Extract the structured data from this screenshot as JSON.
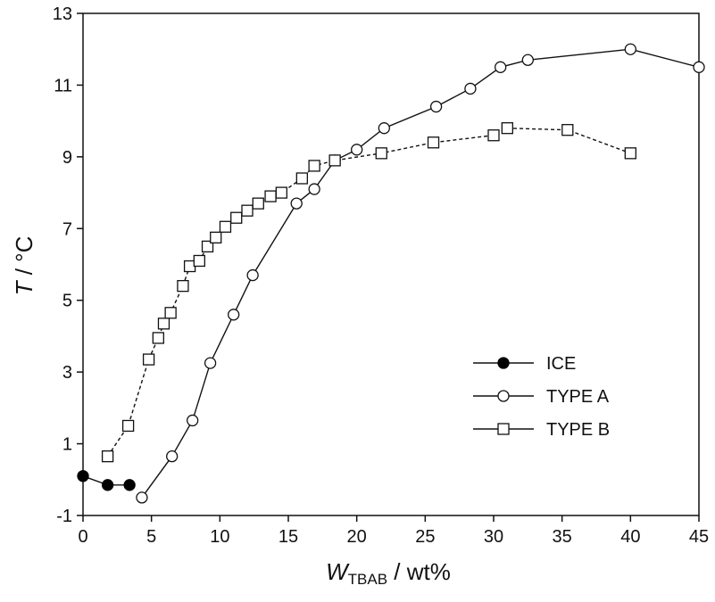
{
  "chart_data": {
    "type": "line",
    "xlabel": {
      "italic": "W",
      "sub": "TBAB",
      "rest": " / wt%"
    },
    "ylabel": {
      "italic": "T",
      "rest": " / °C"
    },
    "xlim": [
      0,
      45
    ],
    "ylim": [
      -1,
      13
    ],
    "xticks": [
      0,
      5,
      10,
      15,
      20,
      25,
      30,
      35,
      40,
      45
    ],
    "yticks": [
      -1,
      1,
      3,
      5,
      7,
      9,
      11,
      13
    ],
    "grid": false,
    "legend_position": "lower-right",
    "series": [
      {
        "name": "ICE",
        "marker": "filled-circle",
        "line": "solid",
        "x": [
          0,
          1.8,
          3.4
        ],
        "y": [
          0.1,
          -0.15,
          -0.15
        ]
      },
      {
        "name": "TYPE A",
        "marker": "open-circle",
        "line": "solid",
        "x": [
          4.3,
          6.5,
          8.0,
          9.3,
          11.0,
          12.4,
          15.6,
          16.9,
          18.4,
          20.0,
          22.0,
          25.8,
          28.3,
          30.5,
          32.5,
          40.0,
          45.0
        ],
        "y": [
          -0.5,
          0.65,
          1.65,
          3.25,
          4.6,
          5.7,
          7.7,
          8.1,
          8.9,
          9.2,
          9.8,
          10.4,
          10.9,
          11.5,
          11.7,
          12.0,
          11.5
        ]
      },
      {
        "name": "TYPE B",
        "marker": "open-square",
        "line": "dashed",
        "x": [
          1.8,
          3.3,
          4.8,
          5.5,
          5.9,
          6.4,
          7.3,
          7.8,
          8.5,
          9.1,
          9.7,
          10.4,
          11.2,
          12.0,
          12.8,
          13.7,
          14.5,
          16.0,
          16.9,
          18.4,
          21.8,
          25.6,
          30.0,
          31.0,
          35.4,
          40.0
        ],
        "y": [
          0.65,
          1.5,
          3.35,
          3.95,
          4.35,
          4.65,
          5.4,
          5.95,
          6.1,
          6.5,
          6.75,
          7.05,
          7.3,
          7.5,
          7.7,
          7.9,
          8.0,
          8.4,
          8.75,
          8.9,
          9.1,
          9.4,
          9.6,
          9.8,
          9.75,
          9.1
        ]
      }
    ]
  }
}
